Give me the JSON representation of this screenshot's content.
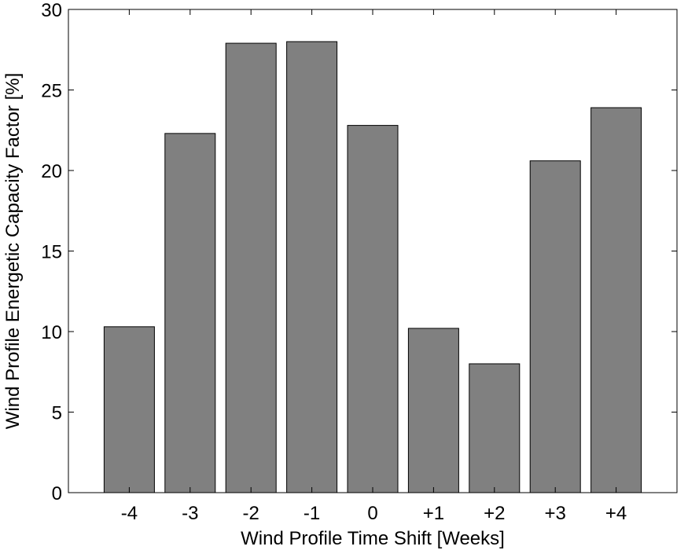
{
  "chart_data": {
    "type": "bar",
    "categories": [
      "-4",
      "-3",
      "-2",
      "-1",
      "0",
      "+1",
      "+2",
      "+3",
      "+4"
    ],
    "values": [
      10.3,
      22.3,
      27.9,
      28.0,
      22.8,
      10.2,
      8.0,
      20.6,
      23.9
    ],
    "xlabel": "Wind Profile Time Shift [Weeks]",
    "ylabel": "Wind Profile Energetic Capacity Factor [%]",
    "ylim": [
      0,
      30
    ],
    "yticks": [
      0,
      5,
      10,
      15,
      20,
      25,
      30
    ],
    "grid": false,
    "bar_color": "#808080",
    "bar_edge_color": "#000000"
  }
}
